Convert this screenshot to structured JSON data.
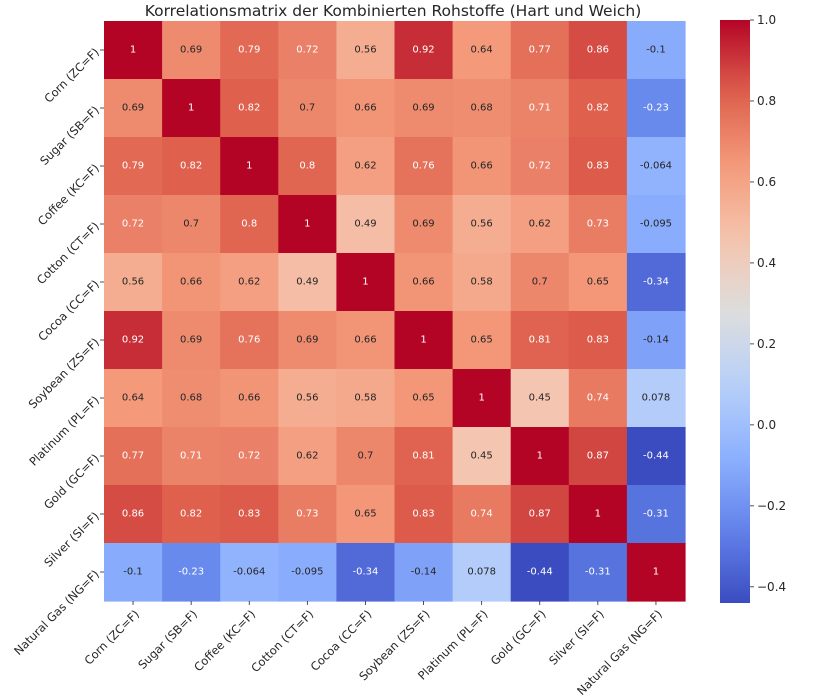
{
  "chart_data": {
    "type": "heatmap",
    "title": "Korrelationsmatrix der Kombinierten Rohstoffe (Hart und Weich)",
    "xlabel": "",
    "ylabel": "",
    "labels": [
      "Corn (ZC=F)",
      "Sugar (SB=F)",
      "Coffee (KC=F)",
      "Cotton (CT=F)",
      "Cocoa (CC=F)",
      "Soybean (ZS=F)",
      "Platinum (PL=F)",
      "Gold (GC=F)",
      "Silver (SI=F)",
      "Natural Gas (NG=F)"
    ],
    "matrix": [
      [
        1,
        0.69,
        0.79,
        0.72,
        0.56,
        0.92,
        0.64,
        0.77,
        0.86,
        -0.1
      ],
      [
        0.69,
        1,
        0.82,
        0.7,
        0.66,
        0.69,
        0.68,
        0.71,
        0.82,
        -0.23
      ],
      [
        0.79,
        0.82,
        1,
        0.8,
        0.62,
        0.76,
        0.66,
        0.72,
        0.83,
        -0.064
      ],
      [
        0.72,
        0.7,
        0.8,
        1,
        0.49,
        0.69,
        0.56,
        0.62,
        0.73,
        -0.095
      ],
      [
        0.56,
        0.66,
        0.62,
        0.49,
        1,
        0.66,
        0.58,
        0.7,
        0.65,
        -0.34
      ],
      [
        0.92,
        0.69,
        0.76,
        0.69,
        0.66,
        1,
        0.65,
        0.81,
        0.83,
        -0.14
      ],
      [
        0.64,
        0.68,
        0.66,
        0.56,
        0.58,
        0.65,
        1,
        0.45,
        0.74,
        0.078
      ],
      [
        0.77,
        0.71,
        0.72,
        0.62,
        0.7,
        0.81,
        0.45,
        1,
        0.87,
        -0.44
      ],
      [
        0.86,
        0.82,
        0.83,
        0.73,
        0.65,
        0.83,
        0.74,
        0.87,
        1,
        -0.31
      ],
      [
        -0.1,
        -0.23,
        -0.064,
        -0.095,
        -0.34,
        -0.14,
        0.078,
        -0.44,
        -0.31,
        1
      ]
    ],
    "cell_labels": [
      [
        "1",
        "0.69",
        "0.79",
        "0.72",
        "0.56",
        "0.92",
        "0.64",
        "0.77",
        "0.86",
        "-0.1"
      ],
      [
        "0.69",
        "1",
        "0.82",
        "0.7",
        "0.66",
        "0.69",
        "0.68",
        "0.71",
        "0.82",
        "-0.23"
      ],
      [
        "0.79",
        "0.82",
        "1",
        "0.8",
        "0.62",
        "0.76",
        "0.66",
        "0.72",
        "0.83",
        "-0.064"
      ],
      [
        "0.72",
        "0.7",
        "0.8",
        "1",
        "0.49",
        "0.69",
        "0.56",
        "0.62",
        "0.73",
        "-0.095"
      ],
      [
        "0.56",
        "0.66",
        "0.62",
        "0.49",
        "1",
        "0.66",
        "0.58",
        "0.7",
        "0.65",
        "-0.34"
      ],
      [
        "0.92",
        "0.69",
        "0.76",
        "0.69",
        "0.66",
        "1",
        "0.65",
        "0.81",
        "0.83",
        "-0.14"
      ],
      [
        "0.64",
        "0.68",
        "0.66",
        "0.56",
        "0.58",
        "0.65",
        "1",
        "0.45",
        "0.74",
        "0.078"
      ],
      [
        "0.77",
        "0.71",
        "0.72",
        "0.62",
        "0.7",
        "0.81",
        "0.45",
        "1",
        "0.87",
        "-0.44"
      ],
      [
        "0.86",
        "0.82",
        "0.83",
        "0.73",
        "0.65",
        "0.83",
        "0.74",
        "0.87",
        "1",
        "-0.31"
      ],
      [
        "-0.1",
        "-0.23",
        "-0.064",
        "-0.095",
        "-0.34",
        "-0.14",
        "0.078",
        "-0.44",
        "-0.31",
        "1"
      ]
    ],
    "colormap": "coolwarm",
    "colorbar": {
      "vmin": -0.44,
      "vmax": 1.0,
      "ticks": [
        1.0,
        0.8,
        0.6,
        0.4,
        0.2,
        0.0,
        -0.2,
        -0.4
      ],
      "tick_labels": [
        "1.0",
        "0.8",
        "0.6",
        "0.4",
        "0.2",
        "0.0",
        "−0.2",
        "−0.4"
      ]
    },
    "grid": false,
    "legend": "colorbar-right"
  }
}
